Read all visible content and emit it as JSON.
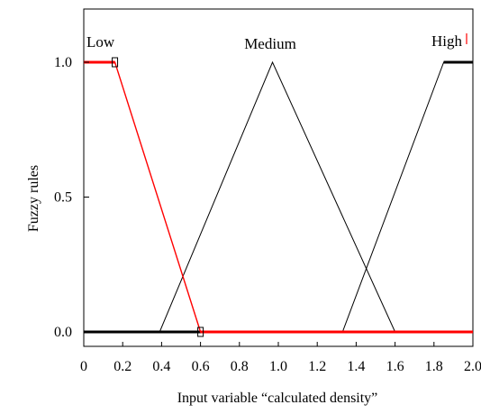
{
  "chart_data": {
    "type": "line",
    "title": "",
    "xlabel": "Input variable “calculated density”",
    "ylabel": "Fuzzy rules",
    "xlim": [
      0,
      2.0
    ],
    "ylim": [
      0,
      1.2
    ],
    "x_ticks": [
      "0",
      "0.2",
      "0.4",
      "0.6",
      "0.8",
      "1.0",
      "1.2",
      "1.4",
      "1.6",
      "1.8",
      "2.0"
    ],
    "y_ticks": [
      "0.0",
      "0.5",
      "1.0"
    ],
    "grid": false,
    "highlight_color": "#ff0000",
    "series": [
      {
        "name": "Low",
        "color": "#ff0000",
        "highlighted": true,
        "x": [
          0,
          0.16,
          0.6,
          2.0
        ],
        "y": [
          1.0,
          1.0,
          0.0,
          0.0
        ]
      },
      {
        "name": "Medium",
        "color": "#000000",
        "highlighted": false,
        "x": [
          0,
          0.39,
          0.97,
          1.6,
          2.0
        ],
        "y": [
          0.0,
          0.0,
          1.0,
          0.0,
          0.0
        ]
      },
      {
        "name": "High",
        "color": "#000000",
        "highlighted": false,
        "x": [
          0,
          1.33,
          1.85,
          2.0
        ],
        "y": [
          0.0,
          0.0,
          1.0,
          1.0
        ]
      }
    ]
  }
}
